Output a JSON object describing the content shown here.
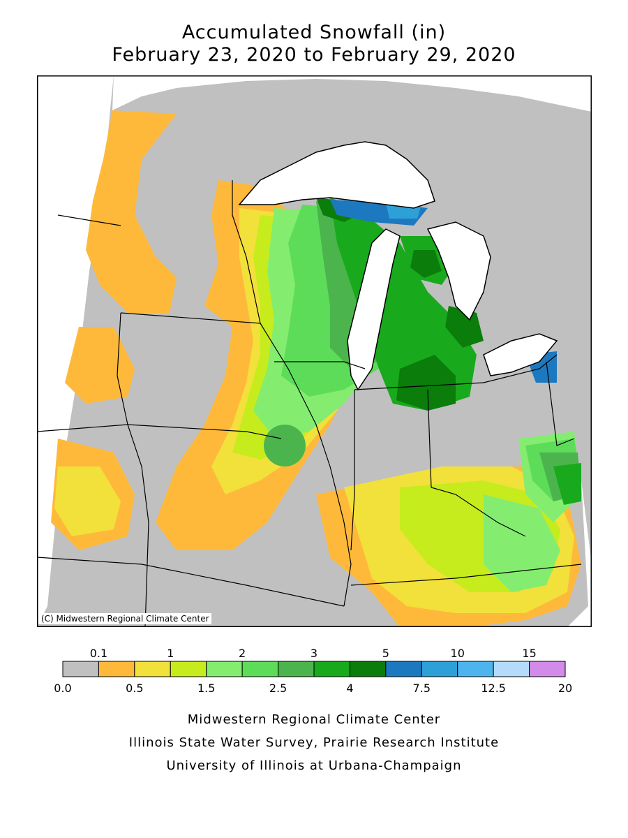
{
  "title": {
    "line1": "Accumulated Snowfall (in)",
    "line2": "February 23, 2020 to February 29, 2020"
  },
  "map": {
    "credit": "(C) Midwestern Regional Climate Center",
    "land_color": "#c0c0c0",
    "water_color": "#ffffff"
  },
  "legend": {
    "top_labels": [
      "0.1",
      "1",
      "2",
      "3",
      "5",
      "10",
      "15"
    ],
    "bottom_labels": [
      "0.0",
      "0.5",
      "1.5",
      "2.5",
      "4",
      "7.5",
      "12.5",
      "20"
    ],
    "colors": [
      "#c0c0c0",
      "#ffb93a",
      "#f2e03b",
      "#c6ec1d",
      "#84ed70",
      "#5ddc5a",
      "#4cb44c",
      "#19a91d",
      "#0a7d0a",
      "#1c79c0",
      "#2ea0d8",
      "#4db4ee",
      "#b4dcfa",
      "#d38bea"
    ]
  },
  "footer": {
    "line1": "Midwestern Regional Climate Center",
    "line2": "Illinois State Water Survey, Prairie Research Institute",
    "line3": "University of Illinois at Urbana-Champaign"
  }
}
